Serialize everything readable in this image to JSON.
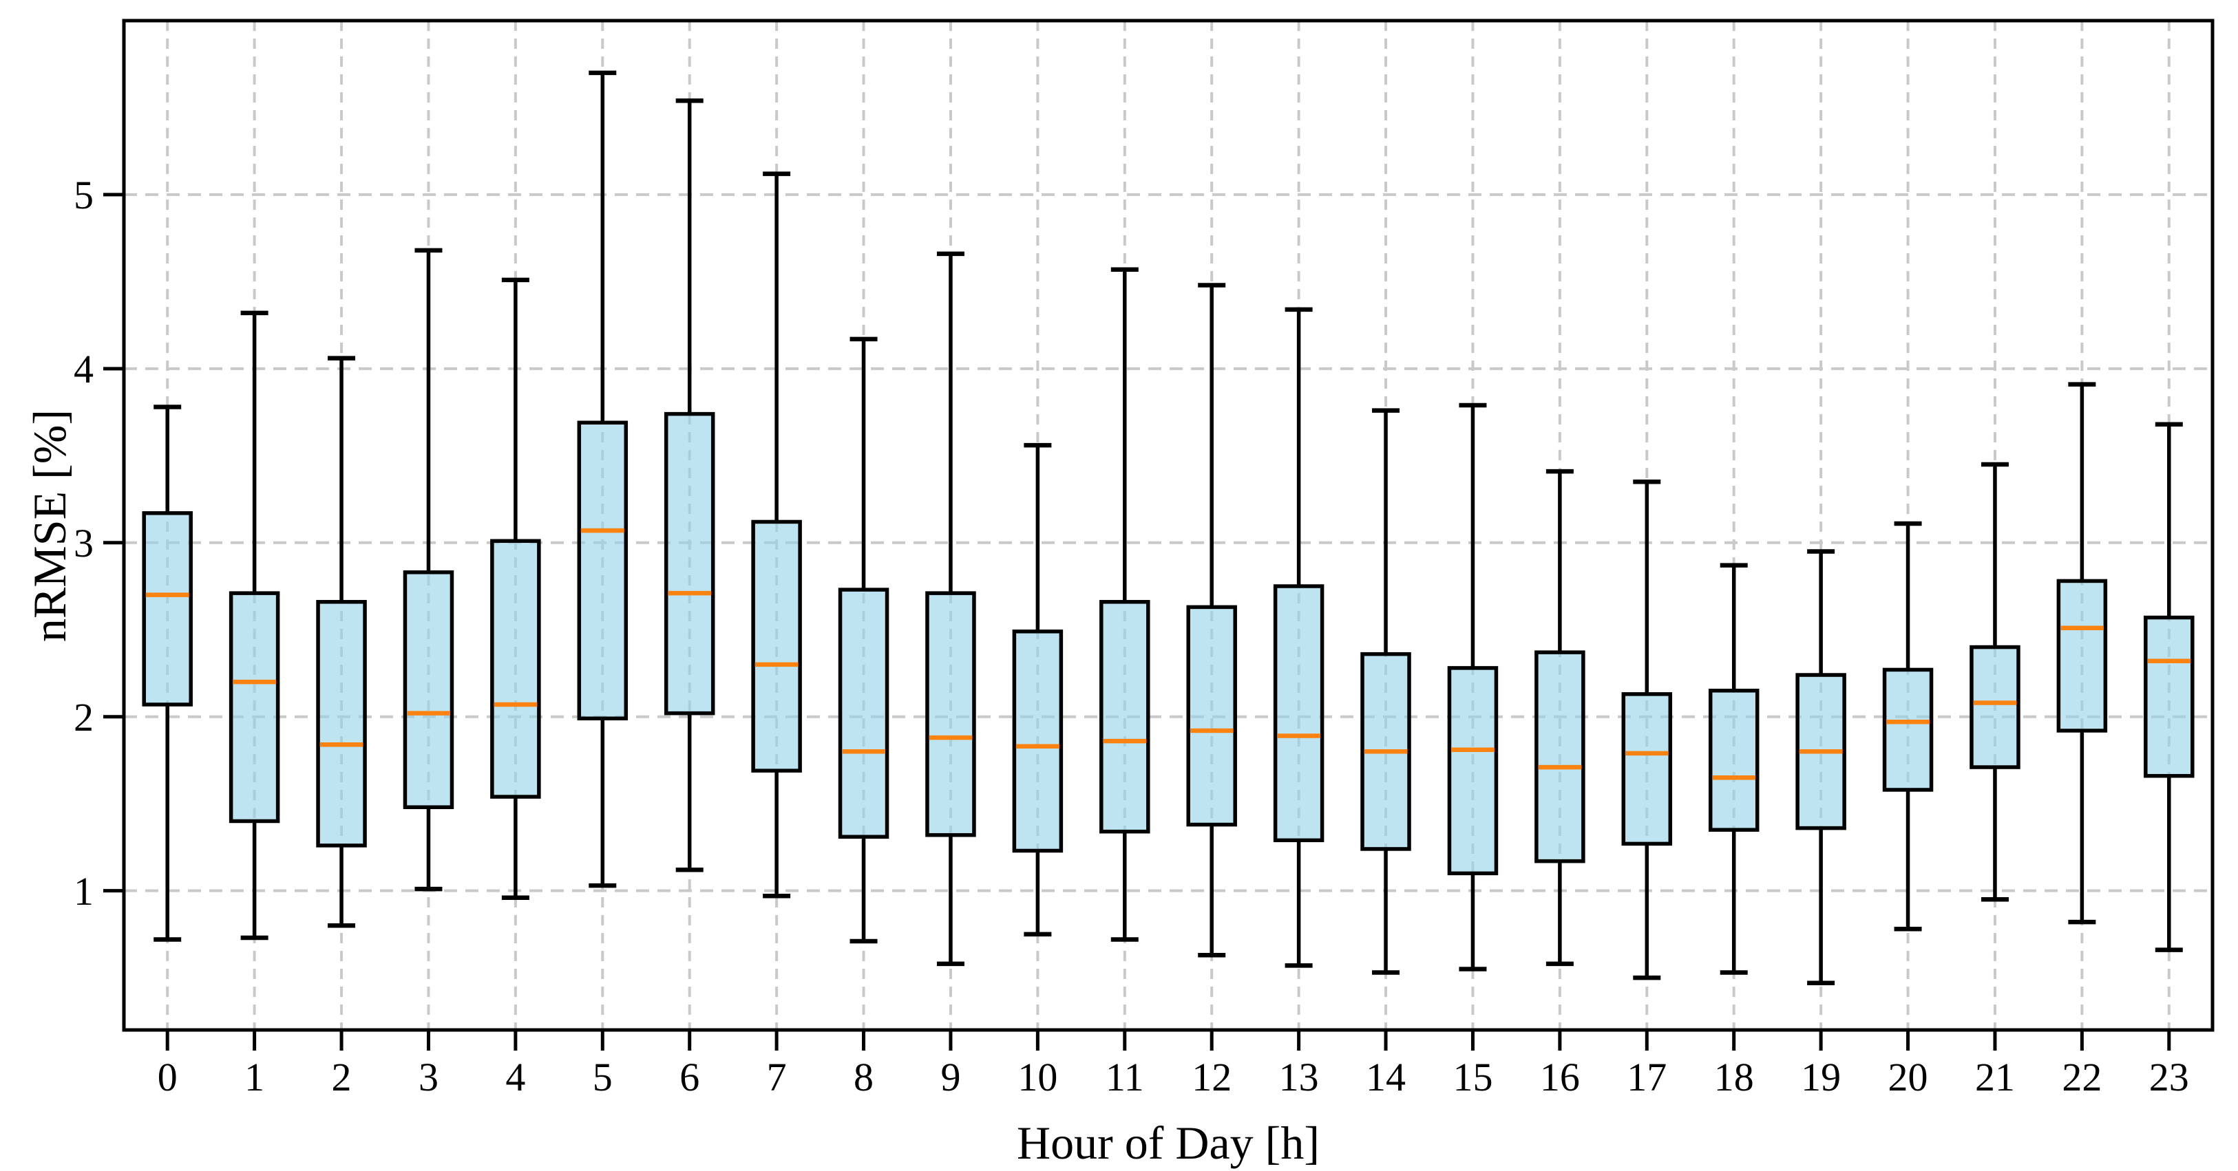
{
  "chart_data": {
    "type": "boxplot",
    "title": "",
    "xlabel": "Hour of Day [h]",
    "ylabel": "nRMSE [%]",
    "x_categories": [
      "0",
      "1",
      "2",
      "3",
      "4",
      "5",
      "6",
      "7",
      "8",
      "9",
      "10",
      "11",
      "12",
      "13",
      "14",
      "15",
      "16",
      "17",
      "18",
      "19",
      "20",
      "21",
      "22",
      "23"
    ],
    "yticks": [
      1,
      2,
      3,
      4,
      5
    ],
    "ylim": [
      0.2,
      6.0
    ],
    "grid": "dashed-both-axes",
    "legend": "none",
    "boxes": [
      {
        "hour": "0",
        "whisker_low": 0.72,
        "q1": 2.07,
        "median": 2.7,
        "q3": 3.17,
        "whisker_high": 3.78
      },
      {
        "hour": "1",
        "whisker_low": 0.73,
        "q1": 1.4,
        "median": 2.2,
        "q3": 2.71,
        "whisker_high": 4.32
      },
      {
        "hour": "2",
        "whisker_low": 0.8,
        "q1": 1.26,
        "median": 1.84,
        "q3": 2.66,
        "whisker_high": 4.06
      },
      {
        "hour": "3",
        "whisker_low": 1.01,
        "q1": 1.48,
        "median": 2.02,
        "q3": 2.83,
        "whisker_high": 4.68
      },
      {
        "hour": "4",
        "whisker_low": 0.96,
        "q1": 1.54,
        "median": 2.07,
        "q3": 3.01,
        "whisker_high": 4.51
      },
      {
        "hour": "5",
        "whisker_low": 1.03,
        "q1": 1.99,
        "median": 3.07,
        "q3": 3.69,
        "whisker_high": 5.7
      },
      {
        "hour": "6",
        "whisker_low": 1.12,
        "q1": 2.02,
        "median": 2.71,
        "q3": 3.74,
        "whisker_high": 5.54
      },
      {
        "hour": "7",
        "whisker_low": 0.97,
        "q1": 1.69,
        "median": 2.3,
        "q3": 3.12,
        "whisker_high": 5.12
      },
      {
        "hour": "8",
        "whisker_low": 0.71,
        "q1": 1.31,
        "median": 1.8,
        "q3": 2.73,
        "whisker_high": 4.17
      },
      {
        "hour": "9",
        "whisker_low": 0.58,
        "q1": 1.32,
        "median": 1.88,
        "q3": 2.71,
        "whisker_high": 4.66
      },
      {
        "hour": "10",
        "whisker_low": 0.75,
        "q1": 1.23,
        "median": 1.83,
        "q3": 2.49,
        "whisker_high": 3.56
      },
      {
        "hour": "11",
        "whisker_low": 0.72,
        "q1": 1.34,
        "median": 1.86,
        "q3": 2.66,
        "whisker_high": 4.57
      },
      {
        "hour": "12",
        "whisker_low": 0.63,
        "q1": 1.38,
        "median": 1.92,
        "q3": 2.63,
        "whisker_high": 4.48
      },
      {
        "hour": "13",
        "whisker_low": 0.57,
        "q1": 1.29,
        "median": 1.89,
        "q3": 2.75,
        "whisker_high": 4.34
      },
      {
        "hour": "14",
        "whisker_low": 0.53,
        "q1": 1.24,
        "median": 1.8,
        "q3": 2.36,
        "whisker_high": 3.76
      },
      {
        "hour": "15",
        "whisker_low": 0.55,
        "q1": 1.1,
        "median": 1.81,
        "q3": 2.28,
        "whisker_high": 3.79
      },
      {
        "hour": "16",
        "whisker_low": 0.58,
        "q1": 1.17,
        "median": 1.71,
        "q3": 2.37,
        "whisker_high": 3.41
      },
      {
        "hour": "17",
        "whisker_low": 0.5,
        "q1": 1.27,
        "median": 1.79,
        "q3": 2.13,
        "whisker_high": 3.35
      },
      {
        "hour": "18",
        "whisker_low": 0.53,
        "q1": 1.35,
        "median": 1.65,
        "q3": 2.15,
        "whisker_high": 2.87
      },
      {
        "hour": "19",
        "whisker_low": 0.47,
        "q1": 1.36,
        "median": 1.8,
        "q3": 2.24,
        "whisker_high": 2.95
      },
      {
        "hour": "20",
        "whisker_low": 0.78,
        "q1": 1.58,
        "median": 1.97,
        "q3": 2.27,
        "whisker_high": 3.11
      },
      {
        "hour": "21",
        "whisker_low": 0.95,
        "q1": 1.71,
        "median": 2.08,
        "q3": 2.4,
        "whisker_high": 3.45
      },
      {
        "hour": "22",
        "whisker_low": 0.82,
        "q1": 1.92,
        "median": 2.51,
        "q3": 2.78,
        "whisker_high": 3.91
      },
      {
        "hour": "23",
        "whisker_low": 0.66,
        "q1": 1.66,
        "median": 2.32,
        "q3": 2.57,
        "whisker_high": 3.68
      }
    ],
    "colors": {
      "box_fill": "#97d3e9",
      "box_fill_opacity": "0.62",
      "box_edge": "#000000",
      "median": "#f98210",
      "whisker": "#000000",
      "grid": "#c9c9c9",
      "axis": "#000000",
      "background": "#ffffff"
    }
  }
}
